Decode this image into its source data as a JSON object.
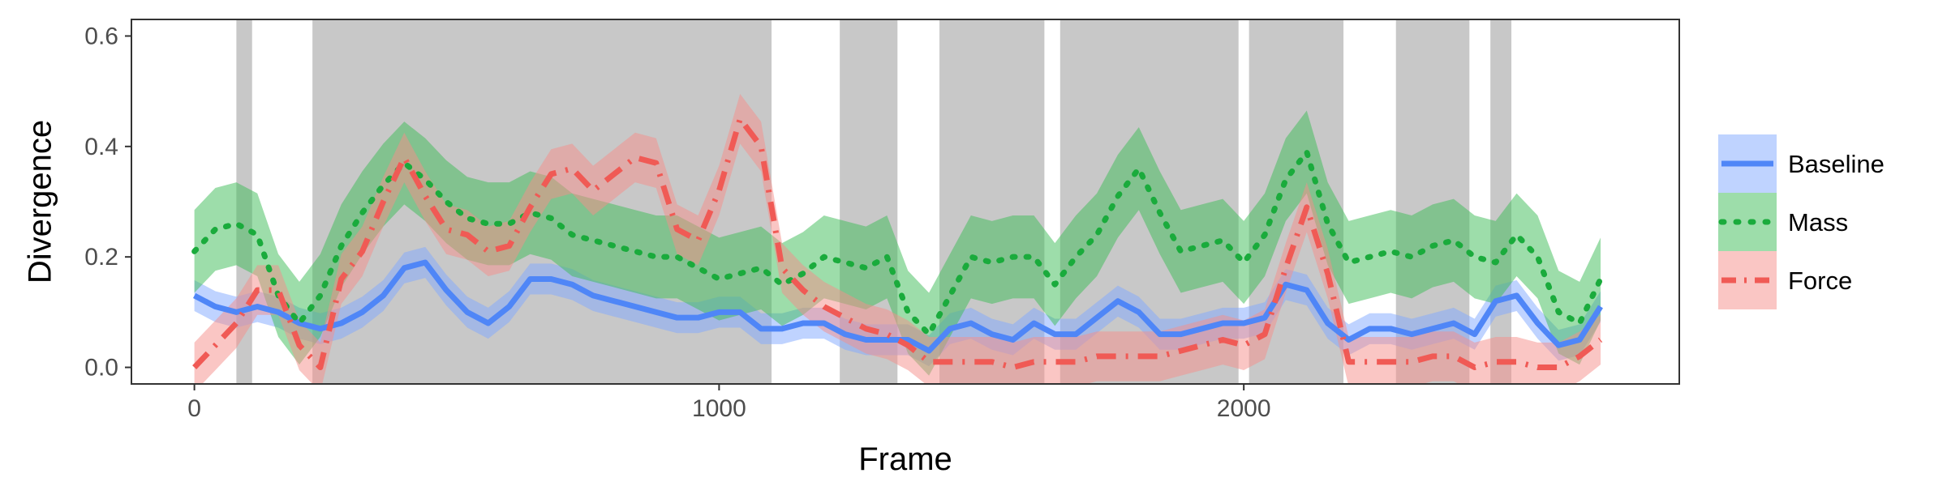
{
  "chart_data": {
    "type": "line",
    "title": "",
    "xlabel": "Frame",
    "ylabel": "Divergence",
    "xlim": [
      -120,
      2830
    ],
    "ylim": [
      -0.03,
      0.63
    ],
    "x_ticks": [
      0,
      1000,
      2000
    ],
    "x_tick_labels": [
      "0",
      "1000",
      "2000"
    ],
    "y_ticks": [
      0.0,
      0.2,
      0.4,
      0.6
    ],
    "y_tick_labels": [
      "0.0",
      "0.2",
      "0.4",
      "0.6"
    ],
    "grid": false,
    "legend_position": "right",
    "shaded_regions": [
      [
        80,
        110
      ],
      [
        225,
        1100
      ],
      [
        1230,
        1340
      ],
      [
        1420,
        1620
      ],
      [
        1650,
        1990
      ],
      [
        2010,
        2190
      ],
      [
        2290,
        2430
      ],
      [
        2470,
        2510
      ]
    ],
    "series": [
      {
        "name": "Baseline",
        "color": "#4f86f7",
        "band_color": "#7fa7ff",
        "style": "solid",
        "x": [
          0,
          40,
          80,
          120,
          160,
          200,
          240,
          280,
          320,
          360,
          400,
          440,
          480,
          520,
          560,
          600,
          640,
          680,
          720,
          760,
          800,
          840,
          880,
          920,
          960,
          1000,
          1040,
          1080,
          1120,
          1160,
          1200,
          1240,
          1280,
          1320,
          1360,
          1400,
          1440,
          1480,
          1520,
          1560,
          1600,
          1640,
          1680,
          1720,
          1760,
          1800,
          1840,
          1880,
          1920,
          1960,
          2000,
          2040,
          2080,
          2120,
          2160,
          2200,
          2240,
          2280,
          2320,
          2360,
          2400,
          2440,
          2480,
          2520,
          2560,
          2600,
          2640,
          2680
        ],
        "y": [
          0.13,
          0.11,
          0.1,
          0.11,
          0.1,
          0.08,
          0.07,
          0.08,
          0.1,
          0.13,
          0.18,
          0.19,
          0.14,
          0.1,
          0.08,
          0.11,
          0.16,
          0.16,
          0.15,
          0.13,
          0.12,
          0.11,
          0.1,
          0.09,
          0.09,
          0.1,
          0.1,
          0.07,
          0.07,
          0.08,
          0.08,
          0.06,
          0.05,
          0.05,
          0.05,
          0.03,
          0.07,
          0.08,
          0.06,
          0.05,
          0.08,
          0.06,
          0.06,
          0.09,
          0.12,
          0.1,
          0.06,
          0.06,
          0.07,
          0.08,
          0.08,
          0.09,
          0.15,
          0.14,
          0.08,
          0.05,
          0.07,
          0.07,
          0.06,
          0.07,
          0.08,
          0.06,
          0.12,
          0.13,
          0.08,
          0.04,
          0.05,
          0.11
        ],
        "band": 0.028
      },
      {
        "name": "Mass",
        "color": "#1aab3c",
        "band_color": "#3cbc55",
        "style": "dotted",
        "x": [
          0,
          40,
          80,
          120,
          160,
          200,
          240,
          280,
          320,
          360,
          400,
          440,
          480,
          520,
          560,
          600,
          640,
          680,
          720,
          760,
          800,
          840,
          880,
          920,
          960,
          1000,
          1040,
          1080,
          1120,
          1160,
          1200,
          1240,
          1280,
          1320,
          1360,
          1400,
          1440,
          1480,
          1520,
          1560,
          1600,
          1640,
          1680,
          1720,
          1760,
          1800,
          1840,
          1880,
          1920,
          1960,
          2000,
          2040,
          2080,
          2120,
          2160,
          2200,
          2240,
          2280,
          2320,
          2360,
          2400,
          2440,
          2480,
          2520,
          2560,
          2600,
          2640,
          2680
        ],
        "y": [
          0.21,
          0.25,
          0.26,
          0.24,
          0.13,
          0.08,
          0.13,
          0.22,
          0.28,
          0.33,
          0.37,
          0.34,
          0.3,
          0.27,
          0.26,
          0.26,
          0.28,
          0.27,
          0.24,
          0.23,
          0.22,
          0.21,
          0.2,
          0.2,
          0.18,
          0.16,
          0.17,
          0.18,
          0.15,
          0.17,
          0.2,
          0.19,
          0.18,
          0.2,
          0.1,
          0.06,
          0.13,
          0.2,
          0.19,
          0.2,
          0.2,
          0.15,
          0.2,
          0.24,
          0.31,
          0.36,
          0.28,
          0.21,
          0.22,
          0.23,
          0.19,
          0.24,
          0.34,
          0.39,
          0.26,
          0.19,
          0.2,
          0.21,
          0.2,
          0.22,
          0.23,
          0.2,
          0.19,
          0.24,
          0.2,
          0.1,
          0.08,
          0.16
        ],
        "band": 0.075
      },
      {
        "name": "Force",
        "color": "#f05a55",
        "band_color": "#f58e89",
        "style": "dashdot",
        "x": [
          0,
          40,
          80,
          120,
          160,
          200,
          240,
          280,
          320,
          360,
          400,
          440,
          480,
          520,
          560,
          600,
          640,
          680,
          720,
          760,
          800,
          840,
          880,
          920,
          960,
          1000,
          1040,
          1080,
          1120,
          1160,
          1200,
          1240,
          1280,
          1320,
          1360,
          1400,
          1440,
          1480,
          1520,
          1560,
          1600,
          1640,
          1680,
          1720,
          1760,
          1800,
          1840,
          1880,
          1920,
          1960,
          2000,
          2040,
          2080,
          2120,
          2160,
          2200,
          2240,
          2280,
          2320,
          2360,
          2400,
          2440,
          2480,
          2520,
          2560,
          2600,
          2640,
          2680
        ],
        "y": [
          0.0,
          0.04,
          0.08,
          0.14,
          0.14,
          0.04,
          0.0,
          0.16,
          0.21,
          0.3,
          0.38,
          0.31,
          0.25,
          0.24,
          0.21,
          0.22,
          0.29,
          0.35,
          0.36,
          0.32,
          0.35,
          0.38,
          0.37,
          0.25,
          0.23,
          0.32,
          0.45,
          0.4,
          0.18,
          0.14,
          0.11,
          0.09,
          0.07,
          0.06,
          0.04,
          0.01,
          0.01,
          0.01,
          0.01,
          0.0,
          0.01,
          0.01,
          0.01,
          0.02,
          0.02,
          0.02,
          0.02,
          0.03,
          0.04,
          0.05,
          0.04,
          0.06,
          0.18,
          0.29,
          0.17,
          0.01,
          0.01,
          0.01,
          0.01,
          0.02,
          0.02,
          0.0,
          0.01,
          0.01,
          0.0,
          0.0,
          0.02,
          0.05
        ],
        "band": 0.045
      }
    ]
  }
}
